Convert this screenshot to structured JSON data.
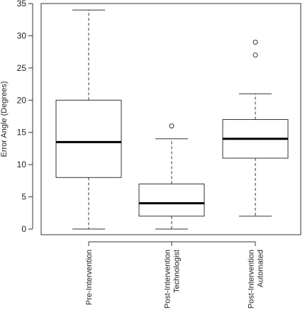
{
  "chart_data": {
    "type": "boxplot",
    "ylabel": "Error Angle (Degrees)",
    "xlabel": "",
    "ylim": [
      0,
      35
    ],
    "yticks": [
      0,
      5,
      10,
      15,
      20,
      25,
      30,
      35
    ],
    "grid": false,
    "series": [
      {
        "label": "Pre-Intervention",
        "label_lines": [
          "Pre-Intervention"
        ],
        "whisker_low": 0,
        "q1": 8,
        "median": 13.5,
        "q3": 20,
        "whisker_high": 34,
        "outliers": []
      },
      {
        "label": "Post-Intervention Technologist",
        "label_lines": [
          "Post-Intervention",
          "Technologist"
        ],
        "whisker_low": 0,
        "q1": 2,
        "median": 4,
        "q3": 7,
        "whisker_high": 14,
        "outliers": [
          16
        ]
      },
      {
        "label": "Post-Intervention Automated",
        "label_lines": [
          "Post-Intervention",
          "Automated"
        ],
        "whisker_low": 2,
        "q1": 11,
        "median": 14,
        "q3": 17,
        "whisker_high": 21,
        "outliers": [
          27,
          29
        ]
      }
    ]
  }
}
